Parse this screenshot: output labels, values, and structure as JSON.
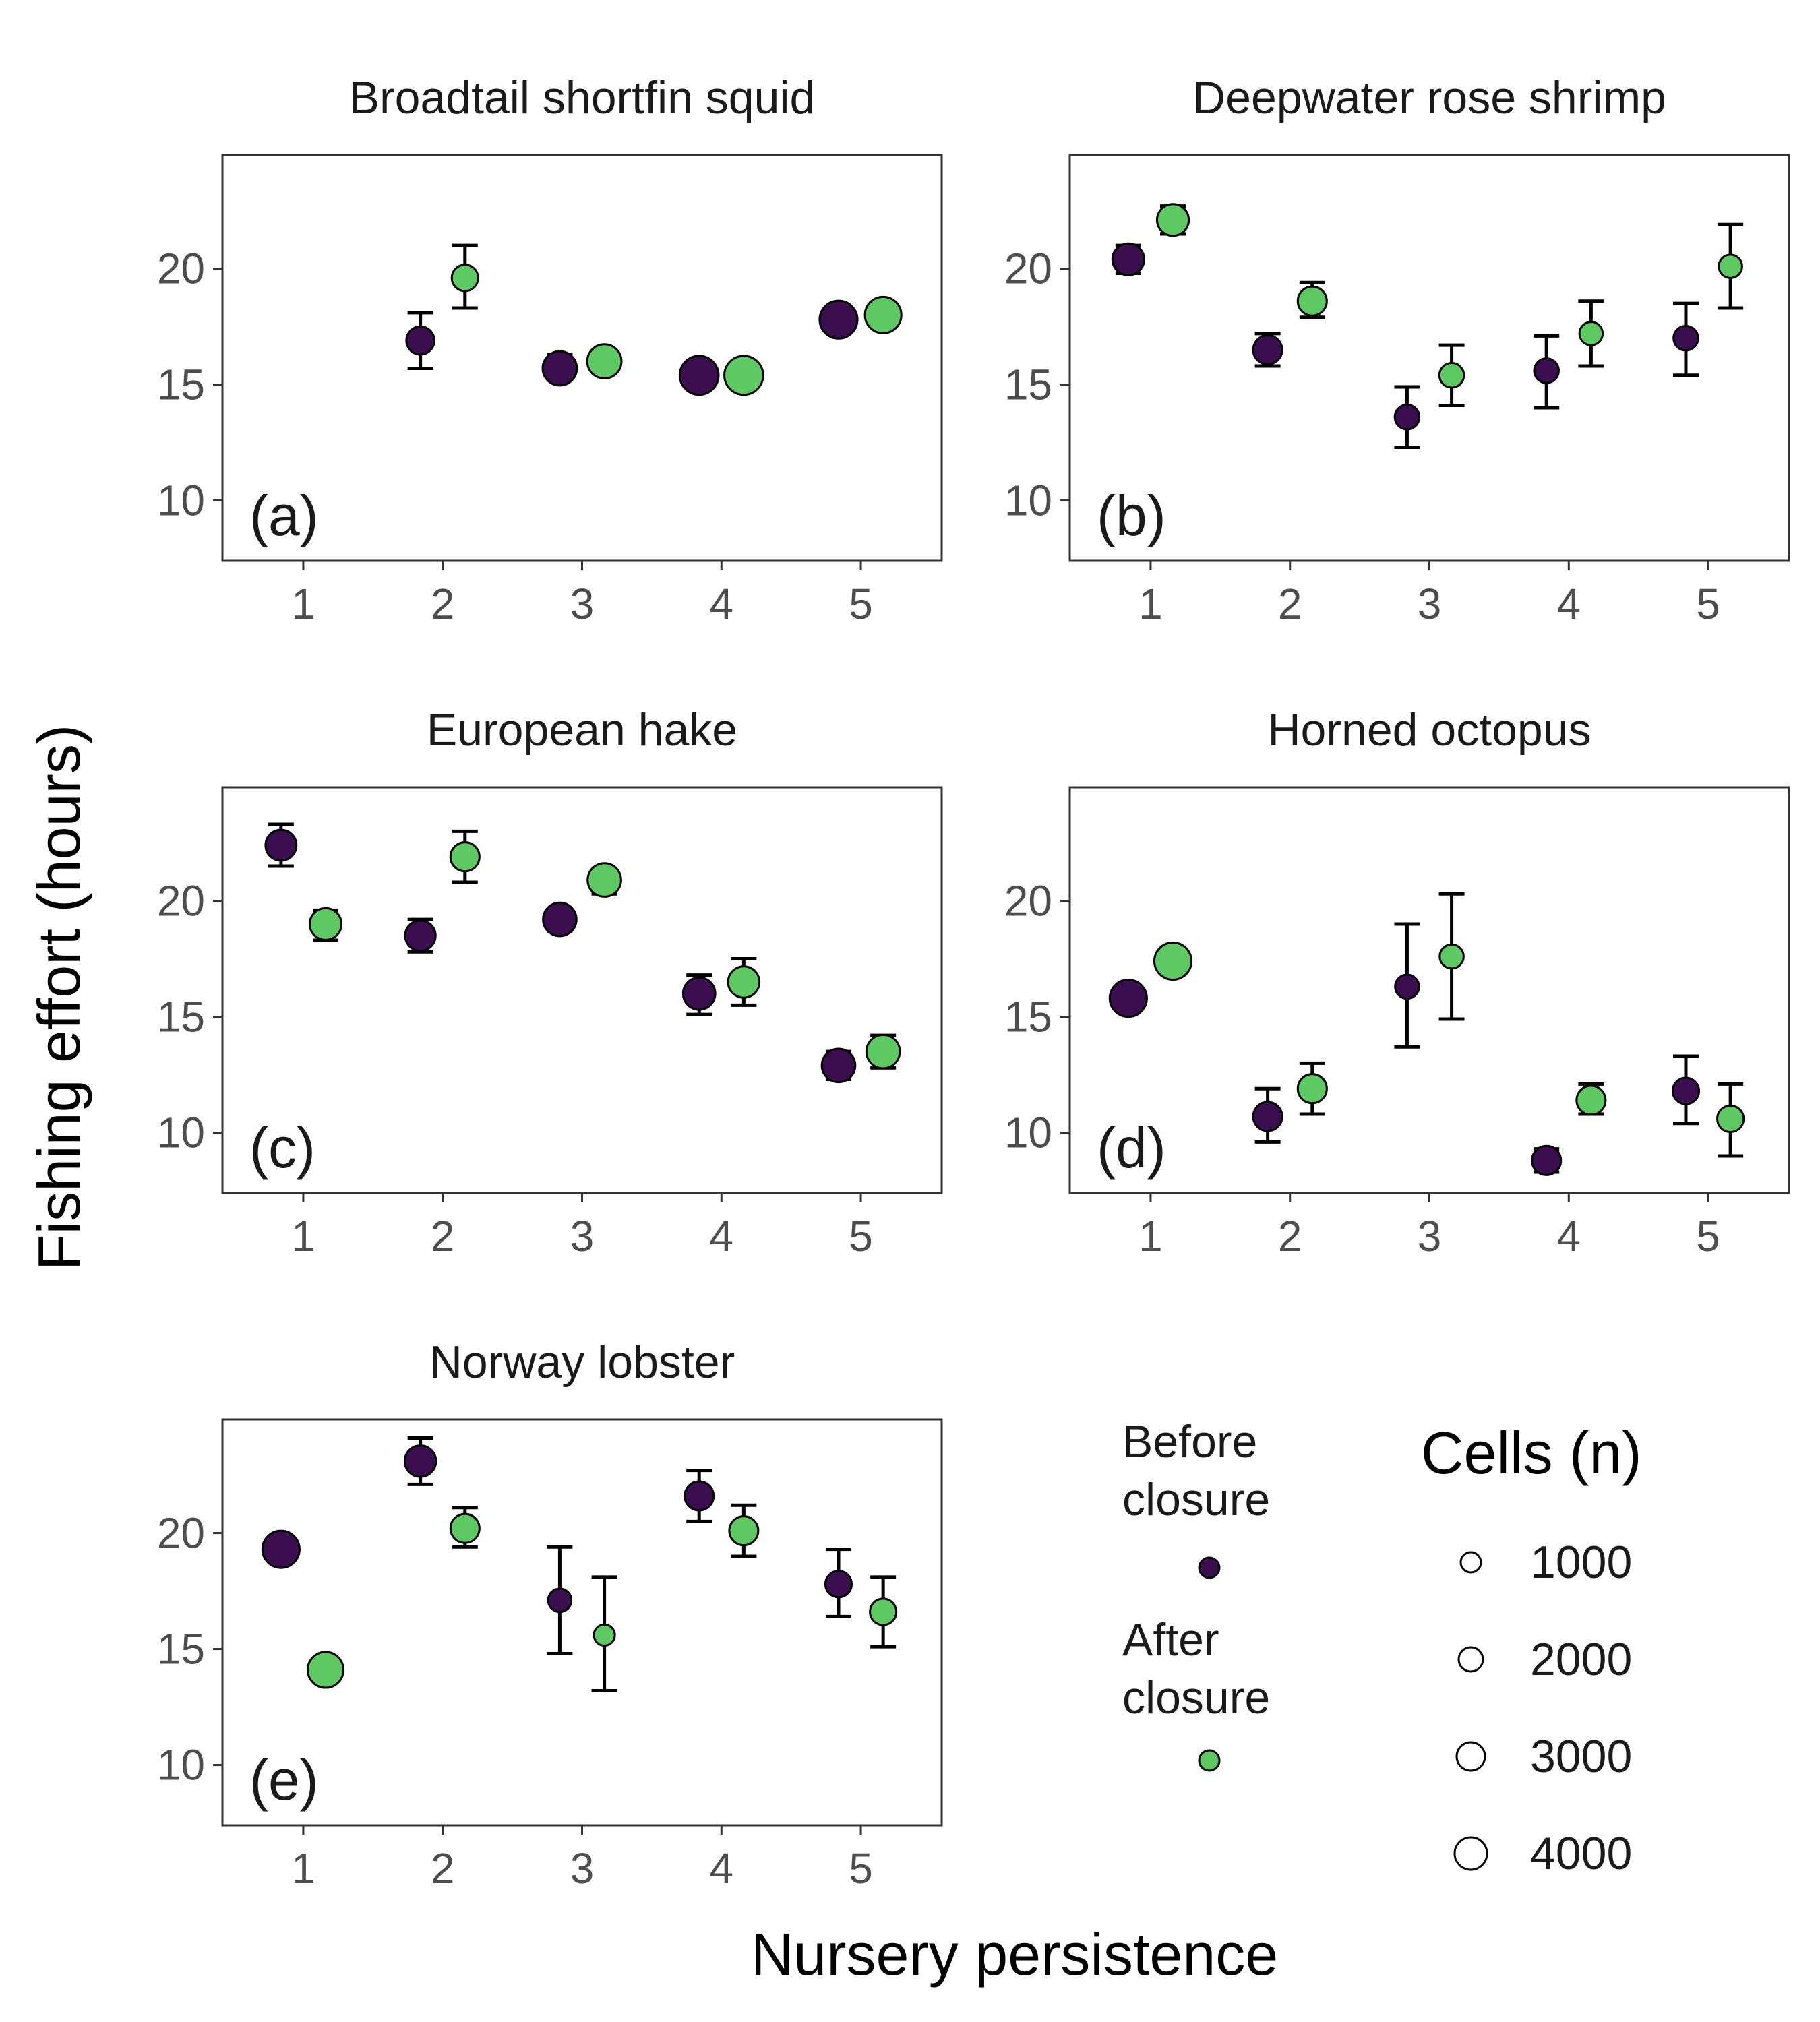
{
  "figure": {
    "xlabel": "Nursery persistence",
    "ylabel": "Fishing effort (hours)"
  },
  "legend": {
    "period_items": [
      {
        "line1": "Before",
        "line2": "closure",
        "color": "#3b0f4f"
      },
      {
        "line1": "After",
        "line2": "closure",
        "color": "#5ec962"
      }
    ],
    "size_title": "Cells (n)",
    "size_items": [
      "1000",
      "2000",
      "3000",
      "4000"
    ]
  },
  "chart_data": [
    {
      "type": "scatter",
      "title": "Broadtail shortfin squid",
      "tag": "(a)",
      "x_ticks": [
        "1",
        "2",
        "3",
        "4",
        "5"
      ],
      "y_ticks": [
        "10",
        "15",
        "20"
      ],
      "xlim": [
        0.42,
        5.58
      ],
      "ylim": [
        7.4,
        24.9
      ],
      "series": [
        {
          "name": "Before closure",
          "color": "#3b0f4f",
          "points": [
            {
              "x": 2,
              "y": 16.9,
              "lo": 15.7,
              "hi": 18.1,
              "n": 1800
            },
            {
              "x": 3,
              "y": 15.7,
              "lo": 15.2,
              "hi": 16.3,
              "n": 3200
            },
            {
              "x": 4,
              "y": 15.4,
              "lo": 15.1,
              "hi": 15.7,
              "n": 4500
            },
            {
              "x": 5,
              "y": 17.8,
              "lo": 17.5,
              "hi": 18.2,
              "n": 4200
            }
          ]
        },
        {
          "name": "After closure",
          "color": "#5ec962",
          "points": [
            {
              "x": 2,
              "y": 19.6,
              "lo": 18.3,
              "hi": 21.0,
              "n": 1500
            },
            {
              "x": 3,
              "y": 16.0,
              "lo": 15.5,
              "hi": 16.5,
              "n": 3200
            },
            {
              "x": 4,
              "y": 15.4,
              "lo": 15.1,
              "hi": 15.7,
              "n": 4500
            },
            {
              "x": 5,
              "y": 18.0,
              "lo": 17.5,
              "hi": 18.5,
              "n": 3800
            }
          ]
        }
      ]
    },
    {
      "type": "scatter",
      "title": "Deepwater rose shrimp",
      "tag": "(b)",
      "x_ticks": [
        "1",
        "2",
        "3",
        "4",
        "5"
      ],
      "y_ticks": [
        "10",
        "15",
        "20"
      ],
      "xlim": [
        0.42,
        5.58
      ],
      "ylim": [
        7.4,
        24.9
      ],
      "series": [
        {
          "name": "Before closure",
          "color": "#3b0f4f",
          "points": [
            {
              "x": 1,
              "y": 20.4,
              "lo": 19.8,
              "hi": 21.0,
              "n": 2600
            },
            {
              "x": 2,
              "y": 16.5,
              "lo": 15.8,
              "hi": 17.2,
              "n": 2000
            },
            {
              "x": 3,
              "y": 13.6,
              "lo": 12.3,
              "hi": 14.9,
              "n": 1200
            },
            {
              "x": 4,
              "y": 15.6,
              "lo": 14.0,
              "hi": 17.1,
              "n": 1200
            },
            {
              "x": 5,
              "y": 17.0,
              "lo": 15.4,
              "hi": 18.5,
              "n": 1200
            }
          ]
        },
        {
          "name": "After closure",
          "color": "#5ec962",
          "points": [
            {
              "x": 1,
              "y": 22.1,
              "lo": 21.5,
              "hi": 22.7,
              "n": 2600
            },
            {
              "x": 2,
              "y": 18.6,
              "lo": 17.9,
              "hi": 19.4,
              "n": 2000
            },
            {
              "x": 3,
              "y": 15.4,
              "lo": 14.1,
              "hi": 16.7,
              "n": 1200
            },
            {
              "x": 4,
              "y": 17.2,
              "lo": 15.8,
              "hi": 18.6,
              "n": 1000
            },
            {
              "x": 5,
              "y": 20.1,
              "lo": 18.3,
              "hi": 21.9,
              "n": 1000
            }
          ]
        }
      ]
    },
    {
      "type": "scatter",
      "title": "European hake",
      "tag": "(c)",
      "x_ticks": [
        "1",
        "2",
        "3",
        "4",
        "5"
      ],
      "y_ticks": [
        "10",
        "15",
        "20"
      ],
      "xlim": [
        0.42,
        5.58
      ],
      "ylim": [
        7.4,
        24.9
      ],
      "series": [
        {
          "name": "Before closure",
          "color": "#3b0f4f",
          "points": [
            {
              "x": 1,
              "y": 22.4,
              "lo": 21.5,
              "hi": 23.3,
              "n": 2400
            },
            {
              "x": 2,
              "y": 18.5,
              "lo": 17.8,
              "hi": 19.2,
              "n": 2300
            },
            {
              "x": 3,
              "y": 19.2,
              "lo": 18.7,
              "hi": 19.6,
              "n": 3000
            },
            {
              "x": 4,
              "y": 16.0,
              "lo": 15.1,
              "hi": 16.8,
              "n": 2700
            },
            {
              "x": 5,
              "y": 12.9,
              "lo": 12.3,
              "hi": 13.5,
              "n": 3000
            }
          ]
        },
        {
          "name": "After closure",
          "color": "#5ec962",
          "points": [
            {
              "x": 1,
              "y": 19.0,
              "lo": 18.3,
              "hi": 19.6,
              "n": 2600
            },
            {
              "x": 2,
              "y": 21.9,
              "lo": 20.8,
              "hi": 23.0,
              "n": 2000
            },
            {
              "x": 3,
              "y": 20.9,
              "lo": 20.3,
              "hi": 21.4,
              "n": 3000
            },
            {
              "x": 4,
              "y": 16.5,
              "lo": 15.5,
              "hi": 17.5,
              "n": 2500
            },
            {
              "x": 5,
              "y": 13.5,
              "lo": 12.8,
              "hi": 14.2,
              "n": 3000
            }
          ]
        }
      ]
    },
    {
      "type": "scatter",
      "title": "Horned octopus",
      "tag": "(d)",
      "x_ticks": [
        "1",
        "2",
        "3",
        "4",
        "5"
      ],
      "y_ticks": [
        "10",
        "15",
        "20"
      ],
      "xlim": [
        0.42,
        5.58
      ],
      "ylim": [
        7.4,
        24.9
      ],
      "series": [
        {
          "name": "Before closure",
          "color": "#3b0f4f",
          "points": [
            {
              "x": 1,
              "y": 15.8,
              "lo": 15.4,
              "hi": 16.2,
              "n": 4000
            },
            {
              "x": 2,
              "y": 10.7,
              "lo": 9.6,
              "hi": 11.9,
              "n": 2000
            },
            {
              "x": 3,
              "y": 16.3,
              "lo": 13.7,
              "hi": 19.0,
              "n": 1100
            },
            {
              "x": 4,
              "y": 8.8,
              "lo": 8.3,
              "hi": 9.3,
              "n": 2000
            },
            {
              "x": 5,
              "y": 11.8,
              "lo": 10.4,
              "hi": 13.3,
              "n": 1500
            }
          ]
        },
        {
          "name": "After closure",
          "color": "#5ec962",
          "points": [
            {
              "x": 1,
              "y": 17.4,
              "lo": 16.9,
              "hi": 18.0,
              "n": 4000
            },
            {
              "x": 2,
              "y": 11.9,
              "lo": 10.8,
              "hi": 13.0,
              "n": 2000
            },
            {
              "x": 3,
              "y": 17.6,
              "lo": 14.9,
              "hi": 20.3,
              "n": 1100
            },
            {
              "x": 4,
              "y": 11.4,
              "lo": 10.8,
              "hi": 12.1,
              "n": 2000
            },
            {
              "x": 5,
              "y": 10.6,
              "lo": 9.0,
              "hi": 12.1,
              "n": 1500
            }
          ]
        }
      ]
    },
    {
      "type": "scatter",
      "title": "Norway lobster",
      "tag": "(e)",
      "x_ticks": [
        "1",
        "2",
        "3",
        "4",
        "5"
      ],
      "y_ticks": [
        "10",
        "15",
        "20"
      ],
      "xlim": [
        0.42,
        5.58
      ],
      "ylim": [
        7.4,
        24.9
      ],
      "series": [
        {
          "name": "Before closure",
          "color": "#3b0f4f",
          "points": [
            {
              "x": 1,
              "y": 19.3,
              "lo": 19.0,
              "hi": 19.6,
              "n": 4000
            },
            {
              "x": 2,
              "y": 23.1,
              "lo": 22.1,
              "hi": 24.1,
              "n": 2500
            },
            {
              "x": 3,
              "y": 17.1,
              "lo": 14.8,
              "hi": 19.4,
              "n": 1000
            },
            {
              "x": 4,
              "y": 21.6,
              "lo": 20.5,
              "hi": 22.7,
              "n": 2000
            },
            {
              "x": 5,
              "y": 17.8,
              "lo": 16.4,
              "hi": 19.3,
              "n": 1500
            }
          ]
        },
        {
          "name": "After closure",
          "color": "#5ec962",
          "points": [
            {
              "x": 1,
              "y": 14.1,
              "lo": 13.6,
              "hi": 14.5,
              "n": 3600
            },
            {
              "x": 2,
              "y": 20.2,
              "lo": 19.4,
              "hi": 21.1,
              "n": 2000
            },
            {
              "x": 3,
              "y": 15.6,
              "lo": 13.2,
              "hi": 18.1,
              "n": 700
            },
            {
              "x": 4,
              "y": 20.1,
              "lo": 19.0,
              "hi": 21.2,
              "n": 2000
            },
            {
              "x": 5,
              "y": 16.6,
              "lo": 15.1,
              "hi": 18.1,
              "n": 1500
            }
          ]
        }
      ]
    }
  ]
}
